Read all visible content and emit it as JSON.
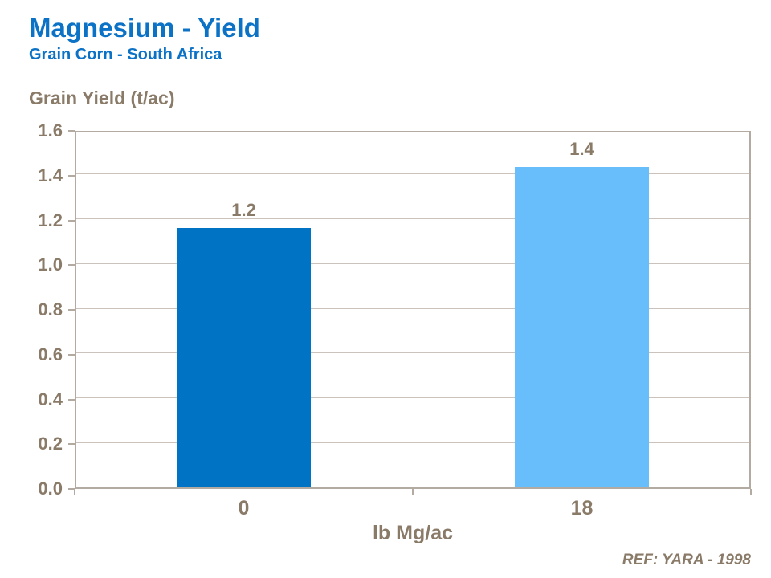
{
  "header": {
    "title": "Magnesium - Yield",
    "subtitle": "Grain Corn - South Africa"
  },
  "footer": {
    "reference": "REF: YARA - 1998"
  },
  "colors": {
    "title_blue": "#0B72C6",
    "text_brown": "#8A7A68",
    "axis_border": "#B3AAA1",
    "gridline": "#CBC3BB",
    "bar_dark_blue": "#0173C5",
    "bar_light_blue": "#67BEFA",
    "background": "#FFFFFF"
  },
  "chart_data": {
    "type": "bar",
    "title": "Magnesium - Yield",
    "subtitle": "Grain Corn - South Africa",
    "categories": [
      "0",
      "18"
    ],
    "values": [
      1.16,
      1.43
    ],
    "data_labels": [
      "1.2",
      "1.4"
    ],
    "series_colors": [
      "#0173C5",
      "#67BEFA"
    ],
    "xlabel": "lb Mg/ac",
    "ylabel": "Grain Yield (t/ac)",
    "ylim": [
      0,
      1.6
    ],
    "yticks": [
      "0.0",
      "0.2",
      "0.4",
      "0.6",
      "0.8",
      "1.0",
      "1.2",
      "1.4",
      "1.6"
    ],
    "grid": true,
    "legend": false
  }
}
